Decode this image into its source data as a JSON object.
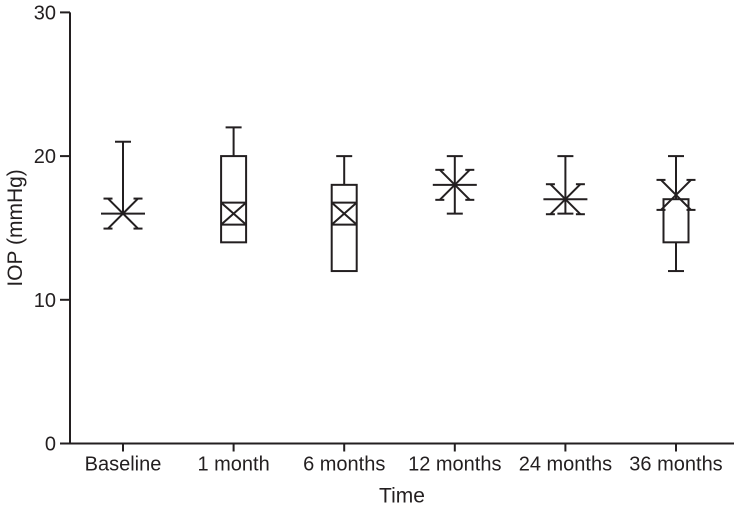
{
  "chart_data": {
    "type": "box",
    "title": "",
    "xlabel": "Time",
    "ylabel": "IOP (mmHg)",
    "ylim": [
      0,
      30
    ],
    "ytick_values": [
      0,
      10,
      20,
      30
    ],
    "ytick_labels": [
      "0",
      "10",
      "20",
      "30"
    ],
    "categories": [
      "Baseline",
      "1 month",
      "6 months",
      "12 months",
      "24 months",
      "36 months"
    ],
    "grid": "off",
    "legend": "none",
    "boxes": [
      {
        "label": "Baseline",
        "median": 16,
        "q1": 16,
        "q3": 16,
        "whisker_low": 16,
        "whisker_high": 21,
        "mean_x": 16,
        "marker": "asterisk",
        "cap_low": false
      },
      {
        "label": "1 month",
        "median": 16,
        "q1": 14,
        "q3": 20,
        "whisker_low": 14,
        "whisker_high": 22,
        "mean_x": 16,
        "marker": "crossband",
        "cap_low": false
      },
      {
        "label": "6 months",
        "median": 16,
        "q1": 12,
        "q3": 18,
        "whisker_low": 12,
        "whisker_high": 20,
        "mean_x": 16,
        "marker": "crossband",
        "cap_low": false
      },
      {
        "label": "12 months",
        "median": 18,
        "q1": 18,
        "q3": 18,
        "whisker_low": 16,
        "whisker_high": 20,
        "mean_x": 18,
        "marker": "asterisk",
        "cap_low": true
      },
      {
        "label": "24 months",
        "median": 17,
        "q1": 17,
        "q3": 17,
        "whisker_low": 16,
        "whisker_high": 20,
        "mean_x": 17,
        "marker": "asterisk",
        "cap_low": true
      },
      {
        "label": "36 months",
        "median": 17,
        "q1": 14,
        "q3": 17,
        "whisker_low": 12,
        "whisker_high": 20,
        "mean_x": 17.3,
        "marker": "x",
        "cap_low": true
      }
    ],
    "colors": {
      "stroke": "#231f20",
      "background": "#ffffff"
    }
  }
}
